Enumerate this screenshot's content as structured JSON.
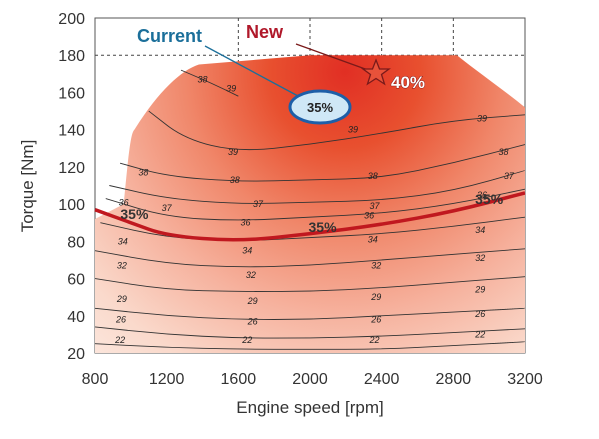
{
  "chart_data": {
    "type": "contour",
    "xlabel": "Engine speed [rpm]",
    "ylabel": "Torque [Nm]",
    "xlim": [
      800,
      3200
    ],
    "ylim": [
      20,
      200
    ],
    "xticks": [
      "800",
      "1200",
      "1600",
      "2000",
      "2400",
      "2800",
      "3200"
    ],
    "yticks": [
      "20",
      "40",
      "60",
      "80",
      "100",
      "120",
      "140",
      "160",
      "180",
      "200"
    ],
    "grid": "dashed",
    "max_torque_curve": [
      [
        960,
        100
      ],
      [
        1020,
        140
      ],
      [
        1380,
        175
      ],
      [
        2000,
        180
      ],
      [
        2820,
        180
      ],
      [
        3200,
        152
      ]
    ],
    "contour_labels": [
      {
        "text": "22",
        "x": 940,
        "y": 27
      },
      {
        "text": "22",
        "x": 1650,
        "y": 27
      },
      {
        "text": "22",
        "x": 2360,
        "y": 27
      },
      {
        "text": "22",
        "x": 2950,
        "y": 30
      },
      {
        "text": "26",
        "x": 945,
        "y": 38
      },
      {
        "text": "26",
        "x": 1680,
        "y": 37
      },
      {
        "text": "26",
        "x": 2370,
        "y": 38
      },
      {
        "text": "26",
        "x": 2950,
        "y": 41
      },
      {
        "text": "29",
        "x": 950,
        "y": 49
      },
      {
        "text": "29",
        "x": 1680,
        "y": 48
      },
      {
        "text": "29",
        "x": 2370,
        "y": 50
      },
      {
        "text": "29",
        "x": 2950,
        "y": 54
      },
      {
        "text": "32",
        "x": 950,
        "y": 67
      },
      {
        "text": "32",
        "x": 1670,
        "y": 62
      },
      {
        "text": "32",
        "x": 2370,
        "y": 67
      },
      {
        "text": "32",
        "x": 2950,
        "y": 71
      },
      {
        "text": "34",
        "x": 955,
        "y": 80
      },
      {
        "text": "34",
        "x": 1650,
        "y": 75
      },
      {
        "text": "34",
        "x": 2350,
        "y": 81
      },
      {
        "text": "34",
        "x": 2950,
        "y": 86
      },
      {
        "text": "36",
        "x": 960,
        "y": 101
      },
      {
        "text": "36",
        "x": 1640,
        "y": 90
      },
      {
        "text": "36",
        "x": 2330,
        "y": 94
      },
      {
        "text": "36",
        "x": 2960,
        "y": 105
      },
      {
        "text": "37",
        "x": 1200,
        "y": 98
      },
      {
        "text": "37",
        "x": 1710,
        "y": 100
      },
      {
        "text": "37",
        "x": 2360,
        "y": 99
      },
      {
        "text": "37",
        "x": 3110,
        "y": 115
      },
      {
        "text": "38",
        "x": 1070,
        "y": 117
      },
      {
        "text": "38",
        "x": 1580,
        "y": 113
      },
      {
        "text": "38",
        "x": 2350,
        "y": 115
      },
      {
        "text": "38",
        "x": 3080,
        "y": 128
      },
      {
        "text": "39",
        "x": 1570,
        "y": 128
      },
      {
        "text": "39",
        "x": 2240,
        "y": 140
      },
      {
        "text": "39",
        "x": 2960,
        "y": 146
      },
      {
        "text": "38",
        "x": 1400,
        "y": 167
      },
      {
        "text": "39",
        "x": 1560,
        "y": 162
      }
    ],
    "efficiency_35_line": {
      "label": "35%",
      "label_positions": [
        [
          1020,
          92
        ],
        [
          2070,
          85
        ],
        [
          3000,
          100
        ]
      ]
    },
    "markers": [
      {
        "label": "Current",
        "value": "35%",
        "x": 2070,
        "y": 148
      },
      {
        "label": "New",
        "value": "40%",
        "x": 2390,
        "y": 170
      }
    ]
  },
  "callouts": {
    "current_label": "Current",
    "new_label": "New",
    "current_value": "35%",
    "new_value": "40%"
  },
  "colors": {
    "peak": "#e4432b",
    "mid": "#f4a188",
    "low": "#fbe3d8",
    "line_35": "#c0181f",
    "current_fill": "#cfe8f6",
    "current_stroke": "#1d5fa8"
  }
}
